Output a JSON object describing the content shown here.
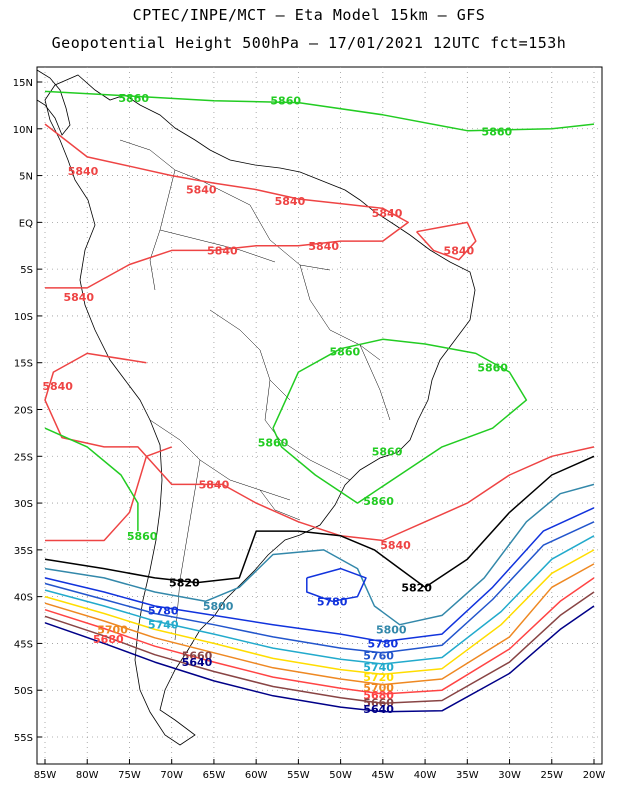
{
  "title_line1": "CPTEC/INPE/MCT –  Eta Model 15km – GFS",
  "title_line2": "Geopotential Height 500hPa – 17/01/2021 12UTC fct=153h",
  "lat_labels": [
    "15N",
    "10N",
    "5N",
    "EQ",
    "5S",
    "10S",
    "15S",
    "20S",
    "25S",
    "30S",
    "35S",
    "40S",
    "45S",
    "50S",
    "55S"
  ],
  "lon_labels": [
    "85W",
    "80W",
    "75W",
    "70W",
    "65W",
    "60W",
    "55W",
    "50W",
    "45W",
    "40W",
    "35W",
    "30W",
    "25W",
    "20W"
  ],
  "colors": {
    "5860": "#22cc22",
    "5840": "#ee4444",
    "5820": "#000000",
    "5800": "#3388aa",
    "5780": "#1133dd",
    "5760": "#2255cc",
    "5740": "#22aacc",
    "5720": "#ffdd00",
    "5700": "#ee8822",
    "5680": "#ff4444",
    "5660": "#884444",
    "5640": "#000088"
  },
  "contour_labels": [
    {
      "text": "5860",
      "level": "5860",
      "lon": -74.5,
      "lat": 13.3
    },
    {
      "text": "5860",
      "level": "5860",
      "lon": -56.5,
      "lat": 13.0
    },
    {
      "text": "5860",
      "level": "5860",
      "lon": -31.5,
      "lat": 9.7
    },
    {
      "text": "5840",
      "level": "5840",
      "lon": -80.5,
      "lat": 5.5
    },
    {
      "text": "5840",
      "level": "5840",
      "lon": -66.5,
      "lat": 3.5
    },
    {
      "text": "5840",
      "level": "5840",
      "lon": -56.0,
      "lat": 2.3
    },
    {
      "text": "5840",
      "level": "5840",
      "lon": -44.5,
      "lat": 1.0
    },
    {
      "text": "5840",
      "level": "5840",
      "lon": -64.0,
      "lat": -3.0
    },
    {
      "text": "5840",
      "level": "5840",
      "lon": -52.0,
      "lat": -2.5
    },
    {
      "text": "5840",
      "level": "5840",
      "lon": -81.0,
      "lat": -8.0
    },
    {
      "text": "5840",
      "level": "5840",
      "lon": -36.0,
      "lat": -3.0
    },
    {
      "text": "5860",
      "level": "5860",
      "lon": -49.5,
      "lat": -13.8
    },
    {
      "text": "5860",
      "level": "5860",
      "lon": -32.0,
      "lat": -15.5
    },
    {
      "text": "5840",
      "level": "5840",
      "lon": -83.5,
      "lat": -17.5
    },
    {
      "text": "5860",
      "level": "5860",
      "lon": -58.0,
      "lat": -23.5
    },
    {
      "text": "5860",
      "level": "5860",
      "lon": -44.5,
      "lat": -24.5
    },
    {
      "text": "5840",
      "level": "5840",
      "lon": -65.0,
      "lat": -28.0
    },
    {
      "text": "5860",
      "level": "5860",
      "lon": -45.5,
      "lat": -29.8
    },
    {
      "text": "5860",
      "level": "5860",
      "lon": -73.5,
      "lat": -33.5
    },
    {
      "text": "5840",
      "level": "5840",
      "lon": -43.5,
      "lat": -34.5
    },
    {
      "text": "5820",
      "level": "5820",
      "lon": -68.5,
      "lat": -38.5
    },
    {
      "text": "5820",
      "level": "5820",
      "lon": -41.0,
      "lat": -39.0
    },
    {
      "text": "5780",
      "level": "5780",
      "lon": -51.0,
      "lat": -40.5
    },
    {
      "text": "5800",
      "level": "5800",
      "lon": -64.5,
      "lat": -41.0
    },
    {
      "text": "5780",
      "level": "5780",
      "lon": -71.0,
      "lat": -41.5
    },
    {
      "text": "5740",
      "level": "5740",
      "lon": -71.0,
      "lat": -43.0
    },
    {
      "text": "5700",
      "level": "5700",
      "lon": -77.0,
      "lat": -43.5
    },
    {
      "text": "5800",
      "level": "5800",
      "lon": -44.0,
      "lat": -43.5
    },
    {
      "text": "5680",
      "level": "5680",
      "lon": -77.5,
      "lat": -44.5
    },
    {
      "text": "5780",
      "level": "5780",
      "lon": -45.0,
      "lat": -45.0
    },
    {
      "text": "5660",
      "level": "5660",
      "lon": -67.0,
      "lat": -46.3
    },
    {
      "text": "5760",
      "level": "5760",
      "lon": -45.5,
      "lat": -46.3
    },
    {
      "text": "5640",
      "level": "5640",
      "lon": -67.0,
      "lat": -47.0
    },
    {
      "text": "5740",
      "level": "5740",
      "lon": -45.5,
      "lat": -47.5
    },
    {
      "text": "5720",
      "level": "5720",
      "lon": -45.5,
      "lat": -48.6
    },
    {
      "text": "5700",
      "level": "5700",
      "lon": -45.5,
      "lat": -49.7
    },
    {
      "text": "5680",
      "level": "5680",
      "lon": -45.5,
      "lat": -50.5
    },
    {
      "text": "5660",
      "level": "5660",
      "lon": -45.5,
      "lat": -51.3
    },
    {
      "text": "5640",
      "level": "5640",
      "lon": -45.5,
      "lat": -52.0
    }
  ],
  "contours": [
    {
      "level": "5860",
      "points": [
        [
          -85,
          14
        ],
        [
          -75,
          13.5
        ],
        [
          -65,
          13
        ],
        [
          -55,
          12.8
        ],
        [
          -45,
          11.5
        ],
        [
          -35,
          9.8
        ],
        [
          -25,
          10
        ],
        [
          -20,
          10.5
        ]
      ]
    },
    {
      "level": "5840",
      "points": [
        [
          -85,
          10.5
        ],
        [
          -80,
          7
        ],
        [
          -75,
          6
        ],
        [
          -70,
          5
        ],
        [
          -65,
          4.2
        ],
        [
          -60,
          3.5
        ],
        [
          -55,
          2.5
        ],
        [
          -50,
          2
        ],
        [
          -45,
          1.5
        ],
        [
          -42,
          0
        ],
        [
          -45,
          -2
        ],
        [
          -50,
          -2
        ],
        [
          -55,
          -2.5
        ],
        [
          -60,
          -2.5
        ],
        [
          -65,
          -3
        ],
        [
          -70,
          -3
        ],
        [
          -75,
          -4.5
        ],
        [
          -80,
          -7
        ],
        [
          -85,
          -7
        ]
      ]
    },
    {
      "level": "5840",
      "points": [
        [
          -41,
          -1
        ],
        [
          -38,
          -0.5
        ],
        [
          -35,
          0
        ],
        [
          -34,
          -2
        ],
        [
          -36,
          -4
        ],
        [
          -39,
          -3
        ],
        [
          -41,
          -1
        ]
      ]
    },
    {
      "level": "5860",
      "points": [
        [
          -58,
          -22
        ],
        [
          -55,
          -16
        ],
        [
          -50,
          -13.5
        ],
        [
          -45,
          -12.5
        ],
        [
          -40,
          -13
        ],
        [
          -34,
          -14
        ],
        [
          -30,
          -16
        ],
        [
          -28,
          -19
        ],
        [
          -32,
          -22
        ],
        [
          -38,
          -24
        ],
        [
          -43,
          -27
        ],
        [
          -48,
          -30
        ],
        [
          -53,
          -27
        ],
        [
          -57,
          -24
        ],
        [
          -58,
          -22
        ]
      ]
    },
    {
      "level": "5840",
      "points": [
        [
          -73,
          -15
        ],
        [
          -80,
          -14
        ],
        [
          -84,
          -16
        ],
        [
          -85,
          -19
        ],
        [
          -83,
          -23
        ],
        [
          -78,
          -24
        ],
        [
          -74,
          -24
        ],
        [
          -72,
          -26
        ],
        [
          -70,
          -28
        ],
        [
          -64,
          -28
        ],
        [
          -60,
          -30
        ],
        [
          -55,
          -32
        ],
        [
          -50,
          -33.5
        ],
        [
          -45,
          -34
        ],
        [
          -40,
          -32
        ],
        [
          -35,
          -30
        ],
        [
          -30,
          -27
        ],
        [
          -25,
          -25
        ],
        [
          -20,
          -24
        ]
      ]
    },
    {
      "level": "5840",
      "points": [
        [
          -85,
          -34
        ],
        [
          -78,
          -34
        ],
        [
          -75,
          -31
        ],
        [
          -73,
          -25
        ],
        [
          -70,
          -24
        ]
      ]
    },
    {
      "level": "5860",
      "points": [
        [
          -85,
          -22
        ],
        [
          -80,
          -24
        ],
        [
          -76,
          -27
        ],
        [
          -74,
          -30
        ],
        [
          -74,
          -33
        ]
      ]
    },
    {
      "level": "5820",
      "points": [
        [
          -85,
          -36
        ],
        [
          -78,
          -37
        ],
        [
          -72,
          -38
        ],
        [
          -67,
          -38.5
        ],
        [
          -62,
          -38
        ],
        [
          -60,
          -33
        ],
        [
          -55,
          -33
        ],
        [
          -50,
          -33.5
        ],
        [
          -46,
          -35
        ],
        [
          -43,
          -37
        ],
        [
          -40,
          -39
        ],
        [
          -35,
          -36
        ],
        [
          -30,
          -31
        ],
        [
          -25,
          -27
        ],
        [
          -20,
          -25
        ]
      ]
    },
    {
      "level": "5800",
      "points": [
        [
          -85,
          -37
        ],
        [
          -78,
          -38
        ],
        [
          -72,
          -39.5
        ],
        [
          -66,
          -40.5
        ],
        [
          -62,
          -39
        ],
        [
          -58,
          -35.5
        ],
        [
          -52,
          -35
        ],
        [
          -48,
          -37
        ],
        [
          -46,
          -41
        ],
        [
          -43,
          -43
        ],
        [
          -38,
          -42
        ],
        [
          -33,
          -38
        ],
        [
          -28,
          -32
        ],
        [
          -24,
          -29
        ],
        [
          -20,
          -28
        ]
      ]
    },
    {
      "level": "5780",
      "points": [
        [
          -54,
          -38
        ],
        [
          -50,
          -37
        ],
        [
          -47,
          -38
        ],
        [
          -48,
          -40
        ],
        [
          -51,
          -40.5
        ],
        [
          -54,
          -39.5
        ],
        [
          -54,
          -38
        ]
      ]
    },
    {
      "level": "5780",
      "points": [
        [
          -85,
          -38
        ],
        [
          -78,
          -39.5
        ],
        [
          -72,
          -41
        ],
        [
          -65,
          -42
        ],
        [
          -58,
          -43
        ],
        [
          -50,
          -44
        ],
        [
          -45,
          -44.8
        ],
        [
          -38,
          -44
        ],
        [
          -32,
          -39
        ],
        [
          -26,
          -33
        ],
        [
          -20,
          -30.5
        ]
      ]
    },
    {
      "level": "5760",
      "points": [
        [
          -85,
          -38.6
        ],
        [
          -78,
          -40.3
        ],
        [
          -72,
          -41.8
        ],
        [
          -65,
          -43
        ],
        [
          -58,
          -44.3
        ],
        [
          -50,
          -45.5
        ],
        [
          -45,
          -46
        ],
        [
          -38,
          -45.2
        ],
        [
          -32,
          -40.3
        ],
        [
          -26,
          -34.5
        ],
        [
          -20,
          -32
        ]
      ]
    },
    {
      "level": "5740",
      "points": [
        [
          -85,
          -39.3
        ],
        [
          -78,
          -41
        ],
        [
          -72,
          -42.6
        ],
        [
          -65,
          -44
        ],
        [
          -58,
          -45.5
        ],
        [
          -50,
          -46.7
        ],
        [
          -45,
          -47.2
        ],
        [
          -38,
          -46.5
        ],
        [
          -31,
          -41.6
        ],
        [
          -25,
          -36
        ],
        [
          -20,
          -33.5
        ]
      ]
    },
    {
      "level": "5720",
      "points": [
        [
          -85,
          -40
        ],
        [
          -78,
          -41.8
        ],
        [
          -72,
          -43.5
        ],
        [
          -65,
          -45
        ],
        [
          -58,
          -46.6
        ],
        [
          -50,
          -47.8
        ],
        [
          -45,
          -48.3
        ],
        [
          -38,
          -47.7
        ],
        [
          -31,
          -43
        ],
        [
          -25,
          -37.5
        ],
        [
          -20,
          -35
        ]
      ]
    },
    {
      "level": "5700",
      "points": [
        [
          -85,
          -40.7
        ],
        [
          -78,
          -42.6
        ],
        [
          -72,
          -44.4
        ],
        [
          -65,
          -46
        ],
        [
          -58,
          -47.6
        ],
        [
          -50,
          -48.8
        ],
        [
          -45,
          -49.4
        ],
        [
          -38,
          -48.8
        ],
        [
          -30,
          -44.3
        ],
        [
          -25,
          -39
        ],
        [
          -20,
          -36.5
        ]
      ]
    },
    {
      "level": "5680",
      "points": [
        [
          -85,
          -41.4
        ],
        [
          -78,
          -43.4
        ],
        [
          -72,
          -45.3
        ],
        [
          -65,
          -47
        ],
        [
          -58,
          -48.6
        ],
        [
          -50,
          -49.8
        ],
        [
          -45,
          -50.4
        ],
        [
          -38,
          -50
        ],
        [
          -30,
          -45.6
        ],
        [
          -24,
          -40.5
        ],
        [
          -20,
          -38
        ]
      ]
    },
    {
      "level": "5660",
      "points": [
        [
          -85,
          -42.1
        ],
        [
          -78,
          -44.2
        ],
        [
          -72,
          -46.2
        ],
        [
          -65,
          -48
        ],
        [
          -58,
          -49.6
        ],
        [
          -50,
          -50.8
        ],
        [
          -45,
          -51.4
        ],
        [
          -38,
          -51.1
        ],
        [
          -30,
          -47
        ],
        [
          -24,
          -42
        ],
        [
          -20,
          -39.5
        ]
      ]
    },
    {
      "level": "5640",
      "points": [
        [
          -85,
          -42.8
        ],
        [
          -78,
          -45
        ],
        [
          -72,
          -47
        ],
        [
          -65,
          -49
        ],
        [
          -58,
          -50.6
        ],
        [
          -50,
          -51.8
        ],
        [
          -45,
          -52.3
        ],
        [
          -38,
          -52.2
        ],
        [
          -30,
          -48.2
        ],
        [
          -24,
          -43.5
        ],
        [
          -20,
          -41
        ]
      ]
    }
  ]
}
